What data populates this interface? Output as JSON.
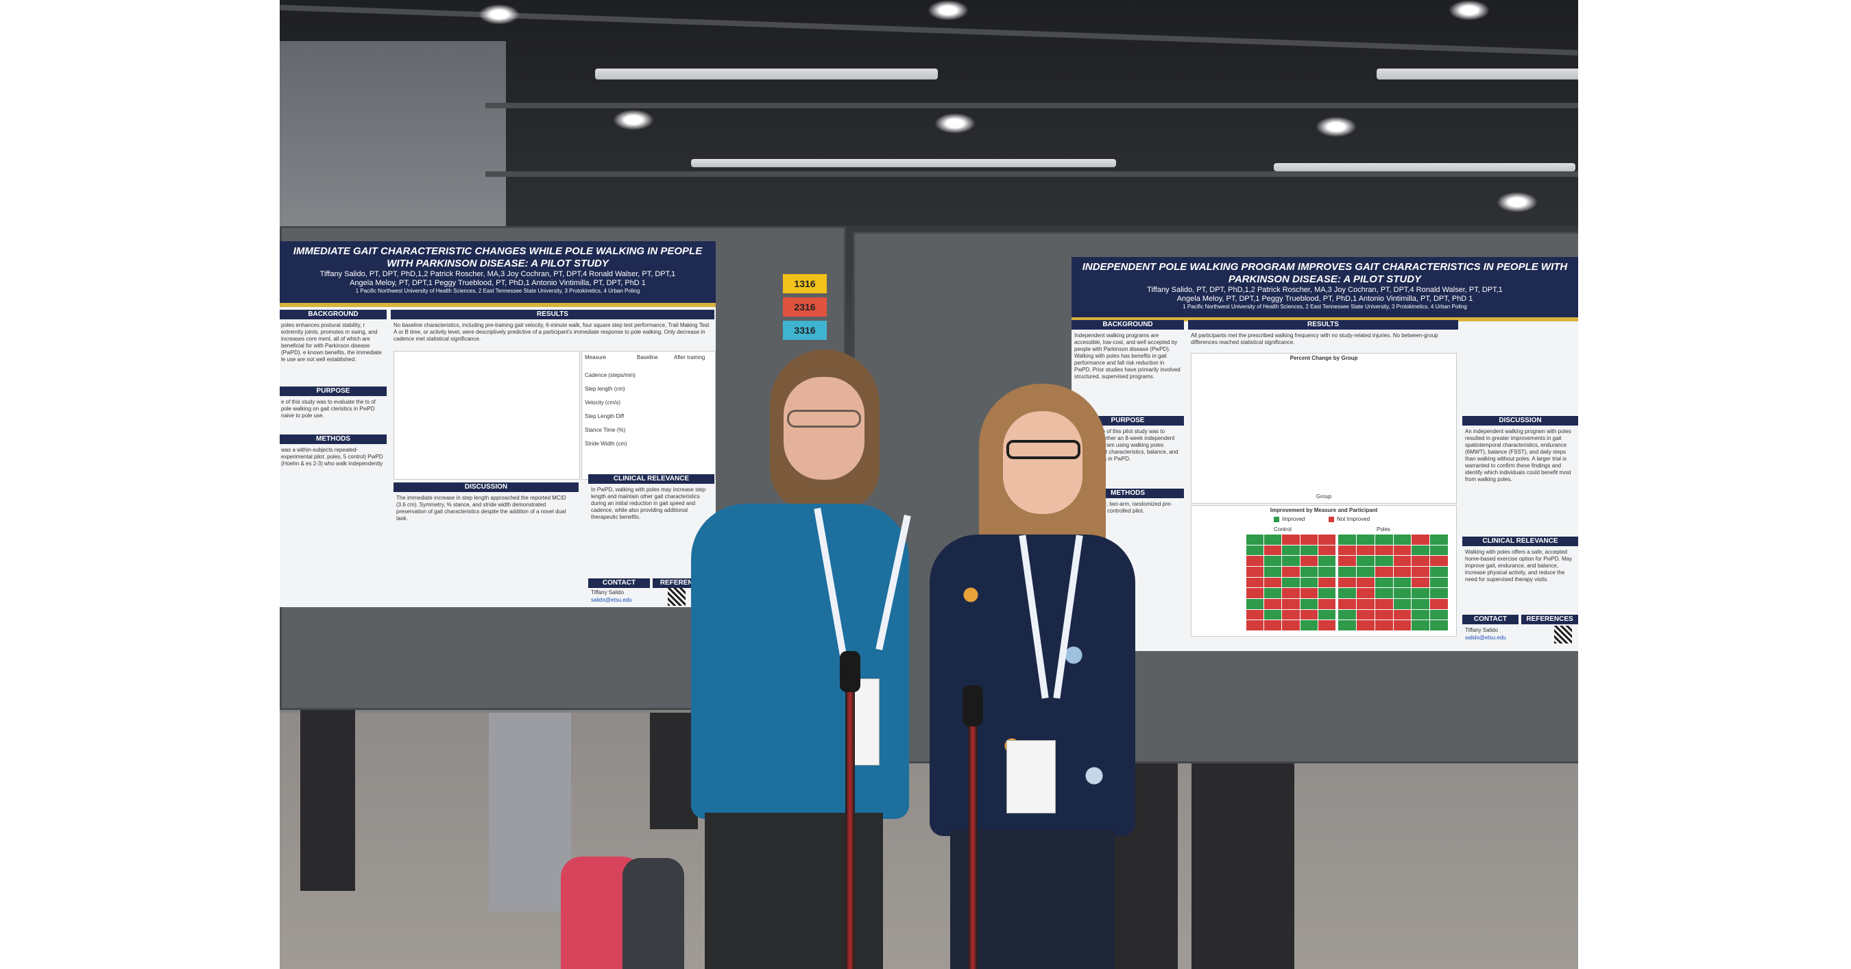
{
  "poster_left": {
    "title": "IMMEDIATE GAIT CHARACTERISTIC CHANGES WHILE POLE WALKING IN PEOPLE WITH PARKINSON DISEASE: A PILOT STUDY",
    "authors_line1": "Tiffany Salido, PT, DPT, PhD,1,2 Patrick Roscher, MA,3 Joy Cochran, PT, DPT,4 Ronald Walser, PT, DPT,1",
    "authors_line2": "Angela Meloy, PT, DPT,1 Peggy Trueblood, PT, PhD,1 Antonio Vintimilla, PT, DPT, PhD 1",
    "affiliations": "1 Pacific Northwest University of Health Sciences, 2 East Tennessee State University, 3 Protokinetics, 4 Urban Poling",
    "sections": {
      "background": "BACKGROUND",
      "purpose": "PURPOSE",
      "methods": "METHODS",
      "results": "RESULTS",
      "discussion": "DISCUSSION",
      "clinical_relevance": "CLINICAL RELEVANCE",
      "contact": "CONTACT",
      "references": "REFERENCES"
    },
    "background_text": "poles enhances postural stability, r extremity joints, promotes m swing, and increases core ment, all of which are beneficial for with Parkinson disease (PwPD). e known benefits, the immediate le use are not well established.",
    "purpose_text": "e of this study was to evaluate the ts of pole walking on gait cteristics in PwPD naive to pole use.",
    "methods_text": "was a within-subjects repeated- experimental pilot. poles, 5 control) PwPD (Hoehn & es 2-3) who walk independently",
    "results_text": "No baseline characteristics, including pre-training gait velocity, 6-minute walk, four square step test performance, Trail Making Test A or B time, or activity level, were descriptively predictive of a participant's immediate response to pole walking. Only decrease in cadence met statistical significance.",
    "discussion_text": "The immediate increase in step length approached the reported MCID (3.6 cm). Symmetry, % stance, and stride width demonstrated preservation of gait characteristics despite the addition of a novel dual task.",
    "clinical_text": "In PwPD, walking with poles may increase step length and maintain other gait characteristics during an initial reduction in gait speed and cadence, while also providing additional therapeutic benefits.",
    "contact_name": "Tiffany Salido",
    "contact_email": "salido@etsu.edu",
    "table_headers": [
      "Measure",
      "Baseline",
      "After training"
    ],
    "table_rows": [
      "Cadence (steps/min)",
      "Step length (cm)",
      "Velocity (cm/s)",
      "Step Length Diff",
      "Stance Time (%)",
      "Stride Width (cm)"
    ]
  },
  "board_tags": [
    "1316",
    "2316",
    "3316"
  ],
  "tag_colors": [
    "#f2c21b",
    "#e0533f",
    "#3fb4d0"
  ],
  "poster_right": {
    "title": "INDEPENDENT POLE WALKING PROGRAM IMPROVES GAIT CHARACTERISTICS IN PEOPLE WITH PARKINSON DISEASE: A PILOT STUDY",
    "authors_line1": "Tiffany Salido, PT, DPT, PhD,1,2 Patrick Roscher, MA,3 Joy Cochran, PT, DPT,4 Ronald Walser, PT, DPT,1",
    "authors_line2": "Angela Meloy, PT, DPT,1 Peggy Trueblood, PT, PhD,1 Antonio Vintimilla, PT, DPT, PhD 1",
    "affiliations": "1 Pacific Northwest University of Health Sciences, 2 East Tennessee State University, 3 Protokinetics, 4 Urban Poling",
    "sections": {
      "background": "BACKGROUND",
      "purpose": "PURPOSE",
      "methods": "METHODS",
      "results": "RESULTS",
      "discussion": "DISCUSSION",
      "clinical_relevance": "CLINICAL RELEVANCE",
      "contact": "CONTACT",
      "references": "REFERENCES"
    },
    "background_text": "Independent walking programs are accessible, low-cost, and well accepted by people with Parkinson disease (PwPD). Walking with poles has benefits in gait performance and fall risk reduction in PwPD. Prior studies have primarily involved structured, supervised programs.",
    "purpose_text": "The purpose of this pilot study was to evaluate whether an 8-week independent walking program using walking poles improved gait characteristics, balance, and activity levels in PwPD.",
    "methods_text": "Single-center, two-arm, randomized pre-test/post-test controlled pilot.",
    "results_text": "All participants met the prescribed walking frequency with no study-related injuries. No between-group differences reached statistical significance.",
    "figure_title": "Percent Change by Group",
    "figure_xlabel": "Group",
    "heatmap_title": "Improvement by Measure and Participant",
    "heatmap_legend": [
      "Improved",
      "Not Improved"
    ],
    "heatmap_groups": [
      "Control",
      "Poles"
    ],
    "discussion_text": "An independent walking program with poles resulted in greater improvements in gait spatiotemporal characteristics, endurance (6MWT), balance (FSST), and daily steps than walking without poles. A larger trial is warranted to confirm these findings and identify which individuals could benefit most from walking poles.",
    "clinical_text": "Walking with poles offers a safe, accepted home-based exercise option for PwPD. May improve gait, endurance, and balance, increase physical activity, and reduce the need for supervised therapy visits.",
    "contact_name": "Tiffany Salido",
    "contact_email": "salido@etsu.edu"
  },
  "colors": {
    "poster_navy": "#1f2a52",
    "poster_gold": "#d9b23a",
    "shirt_blue": "#1d6f9e",
    "pole_red": "#b22a2a"
  }
}
